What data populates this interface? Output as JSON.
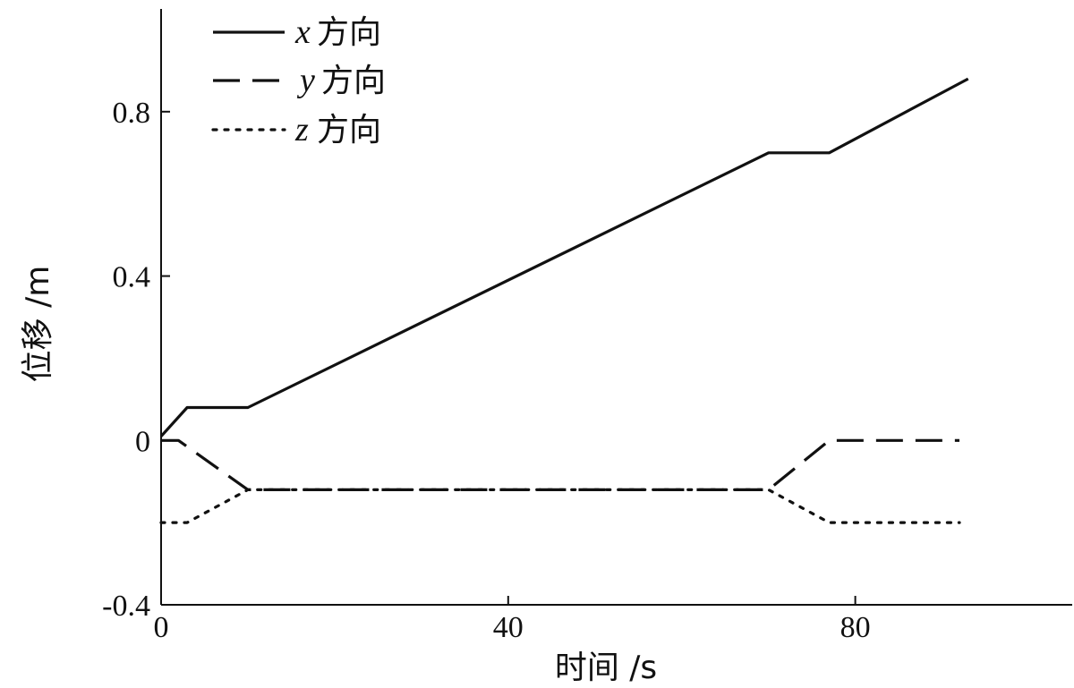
{
  "chart_data": {
    "type": "line",
    "xlabel": "时间 /s",
    "ylabel": "位移 /m",
    "xlim": [
      0,
      105
    ],
    "ylim": [
      -0.4,
      1.05
    ],
    "xticks": [
      0,
      40,
      80
    ],
    "yticks": [
      -0.4,
      0,
      0.4,
      0.8
    ],
    "x_tick_labels": [
      "0",
      "40",
      "80"
    ],
    "y_tick_labels": [
      "-0.4",
      "0",
      "0.4",
      "0.8"
    ],
    "legend_position": "top-left",
    "grid": false,
    "series": [
      {
        "name": "x方向",
        "var": "x",
        "suffix": "方向",
        "style": "solid",
        "color": "#111111",
        "x": [
          0,
          3,
          10,
          70,
          77,
          93
        ],
        "y": [
          0.01,
          0.08,
          0.08,
          0.7,
          0.7,
          0.88
        ]
      },
      {
        "name": "y方向",
        "var": "y",
        "suffix": "方向",
        "style": "dashed",
        "color": "#111111",
        "x": [
          0,
          2,
          10,
          70,
          77,
          92
        ],
        "y": [
          0.0,
          0.0,
          -0.12,
          -0.12,
          0.0,
          0.0
        ]
      },
      {
        "name": "z方向",
        "var": "z",
        "suffix": "方向",
        "style": "dotted",
        "color": "#111111",
        "x": [
          0,
          3,
          10,
          70,
          77,
          92
        ],
        "y": [
          -0.2,
          -0.2,
          -0.12,
          -0.12,
          -0.2,
          -0.2
        ]
      }
    ]
  }
}
